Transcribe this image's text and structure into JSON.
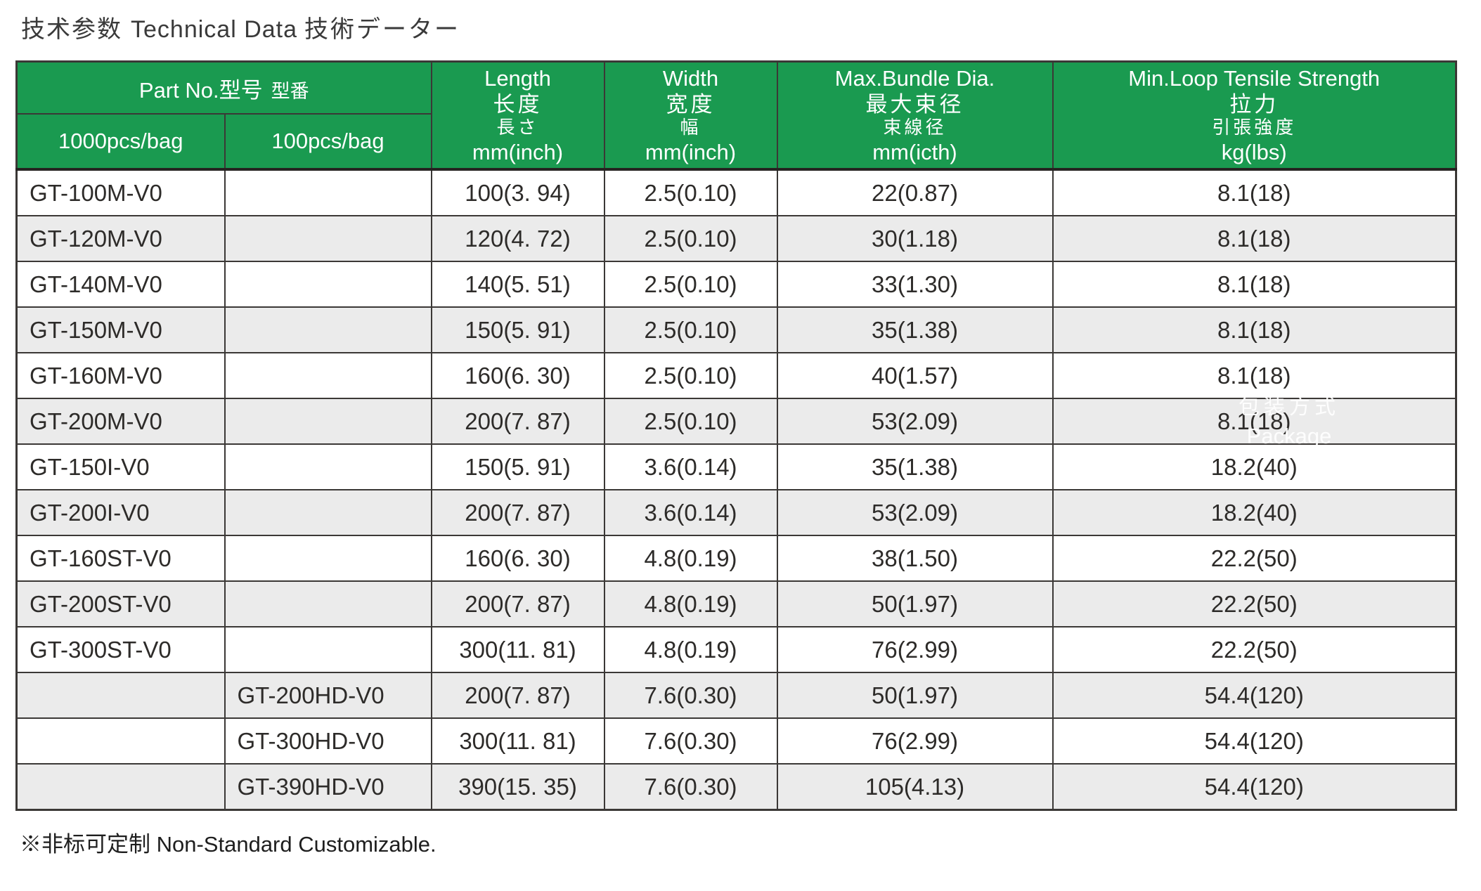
{
  "title": {
    "cn": "技术参数",
    "en": "Technical Data",
    "jp": "技術データー"
  },
  "columns": {
    "part_no": {
      "en": "Part No.",
      "cn": "型号",
      "jp": "型番",
      "sub_1000": "1000pcs/bag",
      "sub_100": "100pcs/bag"
    },
    "length": {
      "en": "Length",
      "cn": "长度",
      "jp": "長さ",
      "unit": "mm(inch)"
    },
    "width": {
      "en": "Width",
      "cn": "宽度",
      "jp": "幅",
      "unit": "mm(inch)"
    },
    "max_bundle": {
      "en": "Max.Bundle Dia.",
      "cn": "最大束径",
      "jp": "束線径",
      "unit": "mm(icth)"
    },
    "tensile": {
      "en": "Min.Loop Tensile Strength",
      "cn": "拉力",
      "jp": "引張強度",
      "unit": "kg(lbs)"
    }
  },
  "rows": [
    {
      "part_1000": "GT-100M-V0",
      "part_100": "",
      "length": "100(3. 94)",
      "width": "2.5(0.10)",
      "max_bundle": "22(0.87)",
      "tensile": "8.1(18)"
    },
    {
      "part_1000": "GT-120M-V0",
      "part_100": "",
      "length": "120(4. 72)",
      "width": "2.5(0.10)",
      "max_bundle": "30(1.18)",
      "tensile": "8.1(18)"
    },
    {
      "part_1000": "GT-140M-V0",
      "part_100": "",
      "length": "140(5. 51)",
      "width": "2.5(0.10)",
      "max_bundle": "33(1.30)",
      "tensile": "8.1(18)"
    },
    {
      "part_1000": "GT-150M-V0",
      "part_100": "",
      "length": "150(5. 91)",
      "width": "2.5(0.10)",
      "max_bundle": "35(1.38)",
      "tensile": "8.1(18)"
    },
    {
      "part_1000": "GT-160M-V0",
      "part_100": "",
      "length": "160(6. 30)",
      "width": "2.5(0.10)",
      "max_bundle": "40(1.57)",
      "tensile": "8.1(18)"
    },
    {
      "part_1000": "GT-200M-V0",
      "part_100": "",
      "length": "200(7. 87)",
      "width": "2.5(0.10)",
      "max_bundle": "53(2.09)",
      "tensile": "8.1(18)"
    },
    {
      "part_1000": "GT-150I-V0",
      "part_100": "",
      "length": "150(5. 91)",
      "width": "3.6(0.14)",
      "max_bundle": "35(1.38)",
      "tensile": "18.2(40)"
    },
    {
      "part_1000": "GT-200I-V0",
      "part_100": "",
      "length": "200(7. 87)",
      "width": "3.6(0.14)",
      "max_bundle": "53(2.09)",
      "tensile": "18.2(40)"
    },
    {
      "part_1000": "GT-160ST-V0",
      "part_100": "",
      "length": "160(6. 30)",
      "width": "4.8(0.19)",
      "max_bundle": "38(1.50)",
      "tensile": "22.2(50)"
    },
    {
      "part_1000": "GT-200ST-V0",
      "part_100": "",
      "length": "200(7. 87)",
      "width": "4.8(0.19)",
      "max_bundle": "50(1.97)",
      "tensile": "22.2(50)"
    },
    {
      "part_1000": "GT-300ST-V0",
      "part_100": "",
      "length": "300(11. 81)",
      "width": "4.8(0.19)",
      "max_bundle": "76(2.99)",
      "tensile": "22.2(50)"
    },
    {
      "part_1000": "",
      "part_100": "GT-200HD-V0",
      "length": "200(7. 87)",
      "width": "7.6(0.30)",
      "max_bundle": "50(1.97)",
      "tensile": "54.4(120)"
    },
    {
      "part_1000": "",
      "part_100": "GT-300HD-V0",
      "length": "300(11. 81)",
      "width": "7.6(0.30)",
      "max_bundle": "76(2.99)",
      "tensile": "54.4(120)"
    },
    {
      "part_1000": "",
      "part_100": "GT-390HD-V0",
      "length": "390(15. 35)",
      "width": "7.6(0.30)",
      "max_bundle": "105(4.13)",
      "tensile": "54.4(120)"
    }
  ],
  "watermark": {
    "line1": "包装方式",
    "line2": "Package"
  },
  "footnote": "※非标可定制 Non-Standard Customizable.",
  "colors": {
    "header_green": "#1a9a50",
    "row_alt_gray": "#ebebeb",
    "border": "#3b3836",
    "text": "#2d2b29"
  }
}
